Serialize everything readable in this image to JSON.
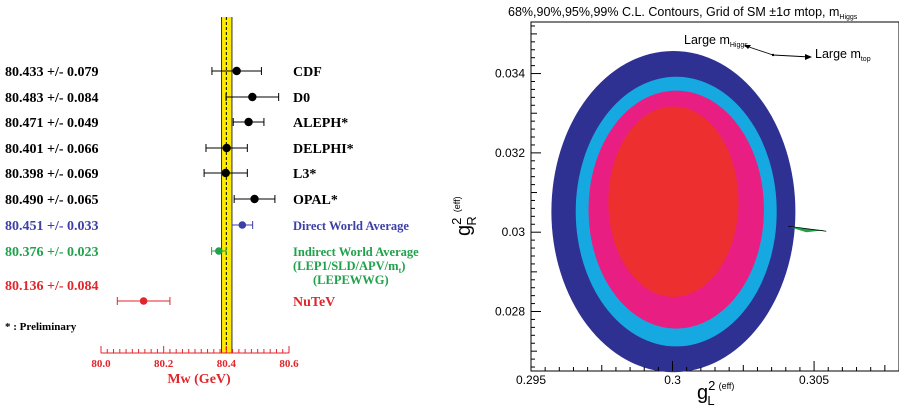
{
  "colors": {
    "black": "#000000",
    "blue": "#3b3fa6",
    "green": "#1fa24b",
    "red": "#e0262b",
    "band": "#ffeb00",
    "contour_outer": "#2e3192",
    "contour_2": "#16a9e1",
    "contour_3": "#e91e82",
    "contour_inner": "#ee2f2f",
    "arrow_green": "#21a04a"
  },
  "chart_data": [
    {
      "type": "errorbar",
      "xlabel": "Mw (GeV)",
      "xlim": [
        80.0,
        80.6
      ],
      "x_ticks": [
        "80.0",
        "80.2",
        "80.4",
        "80.6"
      ],
      "band": {
        "center": 80.4,
        "low": 80.385,
        "high": 80.418
      },
      "footnote": "* : Preliminary",
      "measurements": [
        {
          "label": "CDF",
          "value_text": "80.433 +/- 0.079",
          "value": 80.433,
          "err": 0.079,
          "color": "black"
        },
        {
          "label": "D0",
          "value_text": "80.483 +/- 0.084",
          "value": 80.483,
          "err": 0.084,
          "color": "black"
        },
        {
          "label": "ALEPH*",
          "value_text": "80.471 +/- 0.049",
          "value": 80.471,
          "err": 0.049,
          "color": "black"
        },
        {
          "label": "DELPHI*",
          "value_text": "80.401 +/- 0.066",
          "value": 80.401,
          "err": 0.066,
          "color": "black"
        },
        {
          "label": "L3*",
          "value_text": "80.398 +/- 0.069",
          "value": 80.398,
          "err": 0.069,
          "color": "black"
        },
        {
          "label": "OPAL*",
          "value_text": "80.490 +/- 0.065",
          "value": 80.49,
          "err": 0.065,
          "color": "black"
        },
        {
          "label": "Direct World Average",
          "value_text": "80.451 +/- 0.033",
          "value": 80.451,
          "err": 0.033,
          "color": "blue"
        },
        {
          "label": "Indirect World Average",
          "label2": "(LEP1/SLD/APV/m",
          "label2_sub": "t",
          "label3": "(LEPEWWG)",
          "value_text": "80.376 +/- 0.023",
          "value": 80.376,
          "err": 0.023,
          "color": "green"
        },
        {
          "label": "NuTeV",
          "value_text": "80.136 +/- 0.084",
          "value": 80.136,
          "err": 0.084,
          "color": "red"
        }
      ]
    },
    {
      "type": "contour",
      "title": "68%,90%,95%,99% C.L. Contours, Grid of SM ±1σ mtop, m",
      "title_sub": "Higgs",
      "xlabel": "g",
      "xlabel_sup": "2",
      "xlabel_sub": "L",
      "xlabel_sup2": "(eff)",
      "ylabel": "g",
      "ylabel_sup": "2",
      "ylabel_sub": "R",
      "ylabel_sup2": "(eff)",
      "xlim": [
        0.295,
        0.308
      ],
      "ylim": [
        0.0265,
        0.0353
      ],
      "x_ticks": [
        0.295,
        0.3,
        0.305
      ],
      "x_tick_labels": [
        "0.295",
        "0.3",
        "0.305"
      ],
      "y_ticks": [
        0.028,
        0.03,
        0.032,
        0.034
      ],
      "y_tick_labels": [
        "0.028",
        "0.03",
        "0.032",
        "0.034"
      ],
      "ellipses": [
        {
          "level": "99%",
          "cx": 0.30003,
          "cy": 0.03052,
          "rx": 0.00431,
          "ry": 0.00405,
          "color": "contour_outer"
        },
        {
          "level": "95%",
          "cx": 0.30013,
          "cy": 0.03052,
          "rx": 0.00355,
          "ry": 0.0034,
          "color": "contour_2"
        },
        {
          "level": "90%",
          "cx": 0.30013,
          "cy": 0.03057,
          "rx": 0.0031,
          "ry": 0.003,
          "color": "contour_3"
        },
        {
          "level": "68%",
          "cx": 0.30003,
          "cy": 0.03077,
          "rx": 0.0023,
          "ry": 0.0024,
          "color": "contour_inner"
        }
      ],
      "annotations": [
        {
          "text": "Large m",
          "sub": "Higgs",
          "x": 0.3,
          "y": 0.0346
        },
        {
          "text": "Large m",
          "sub": "top",
          "x": 0.30505,
          "y": 0.0343
        }
      ],
      "sm_grid_point": {
        "x": 0.3043,
        "y": 0.0301
      }
    }
  ]
}
